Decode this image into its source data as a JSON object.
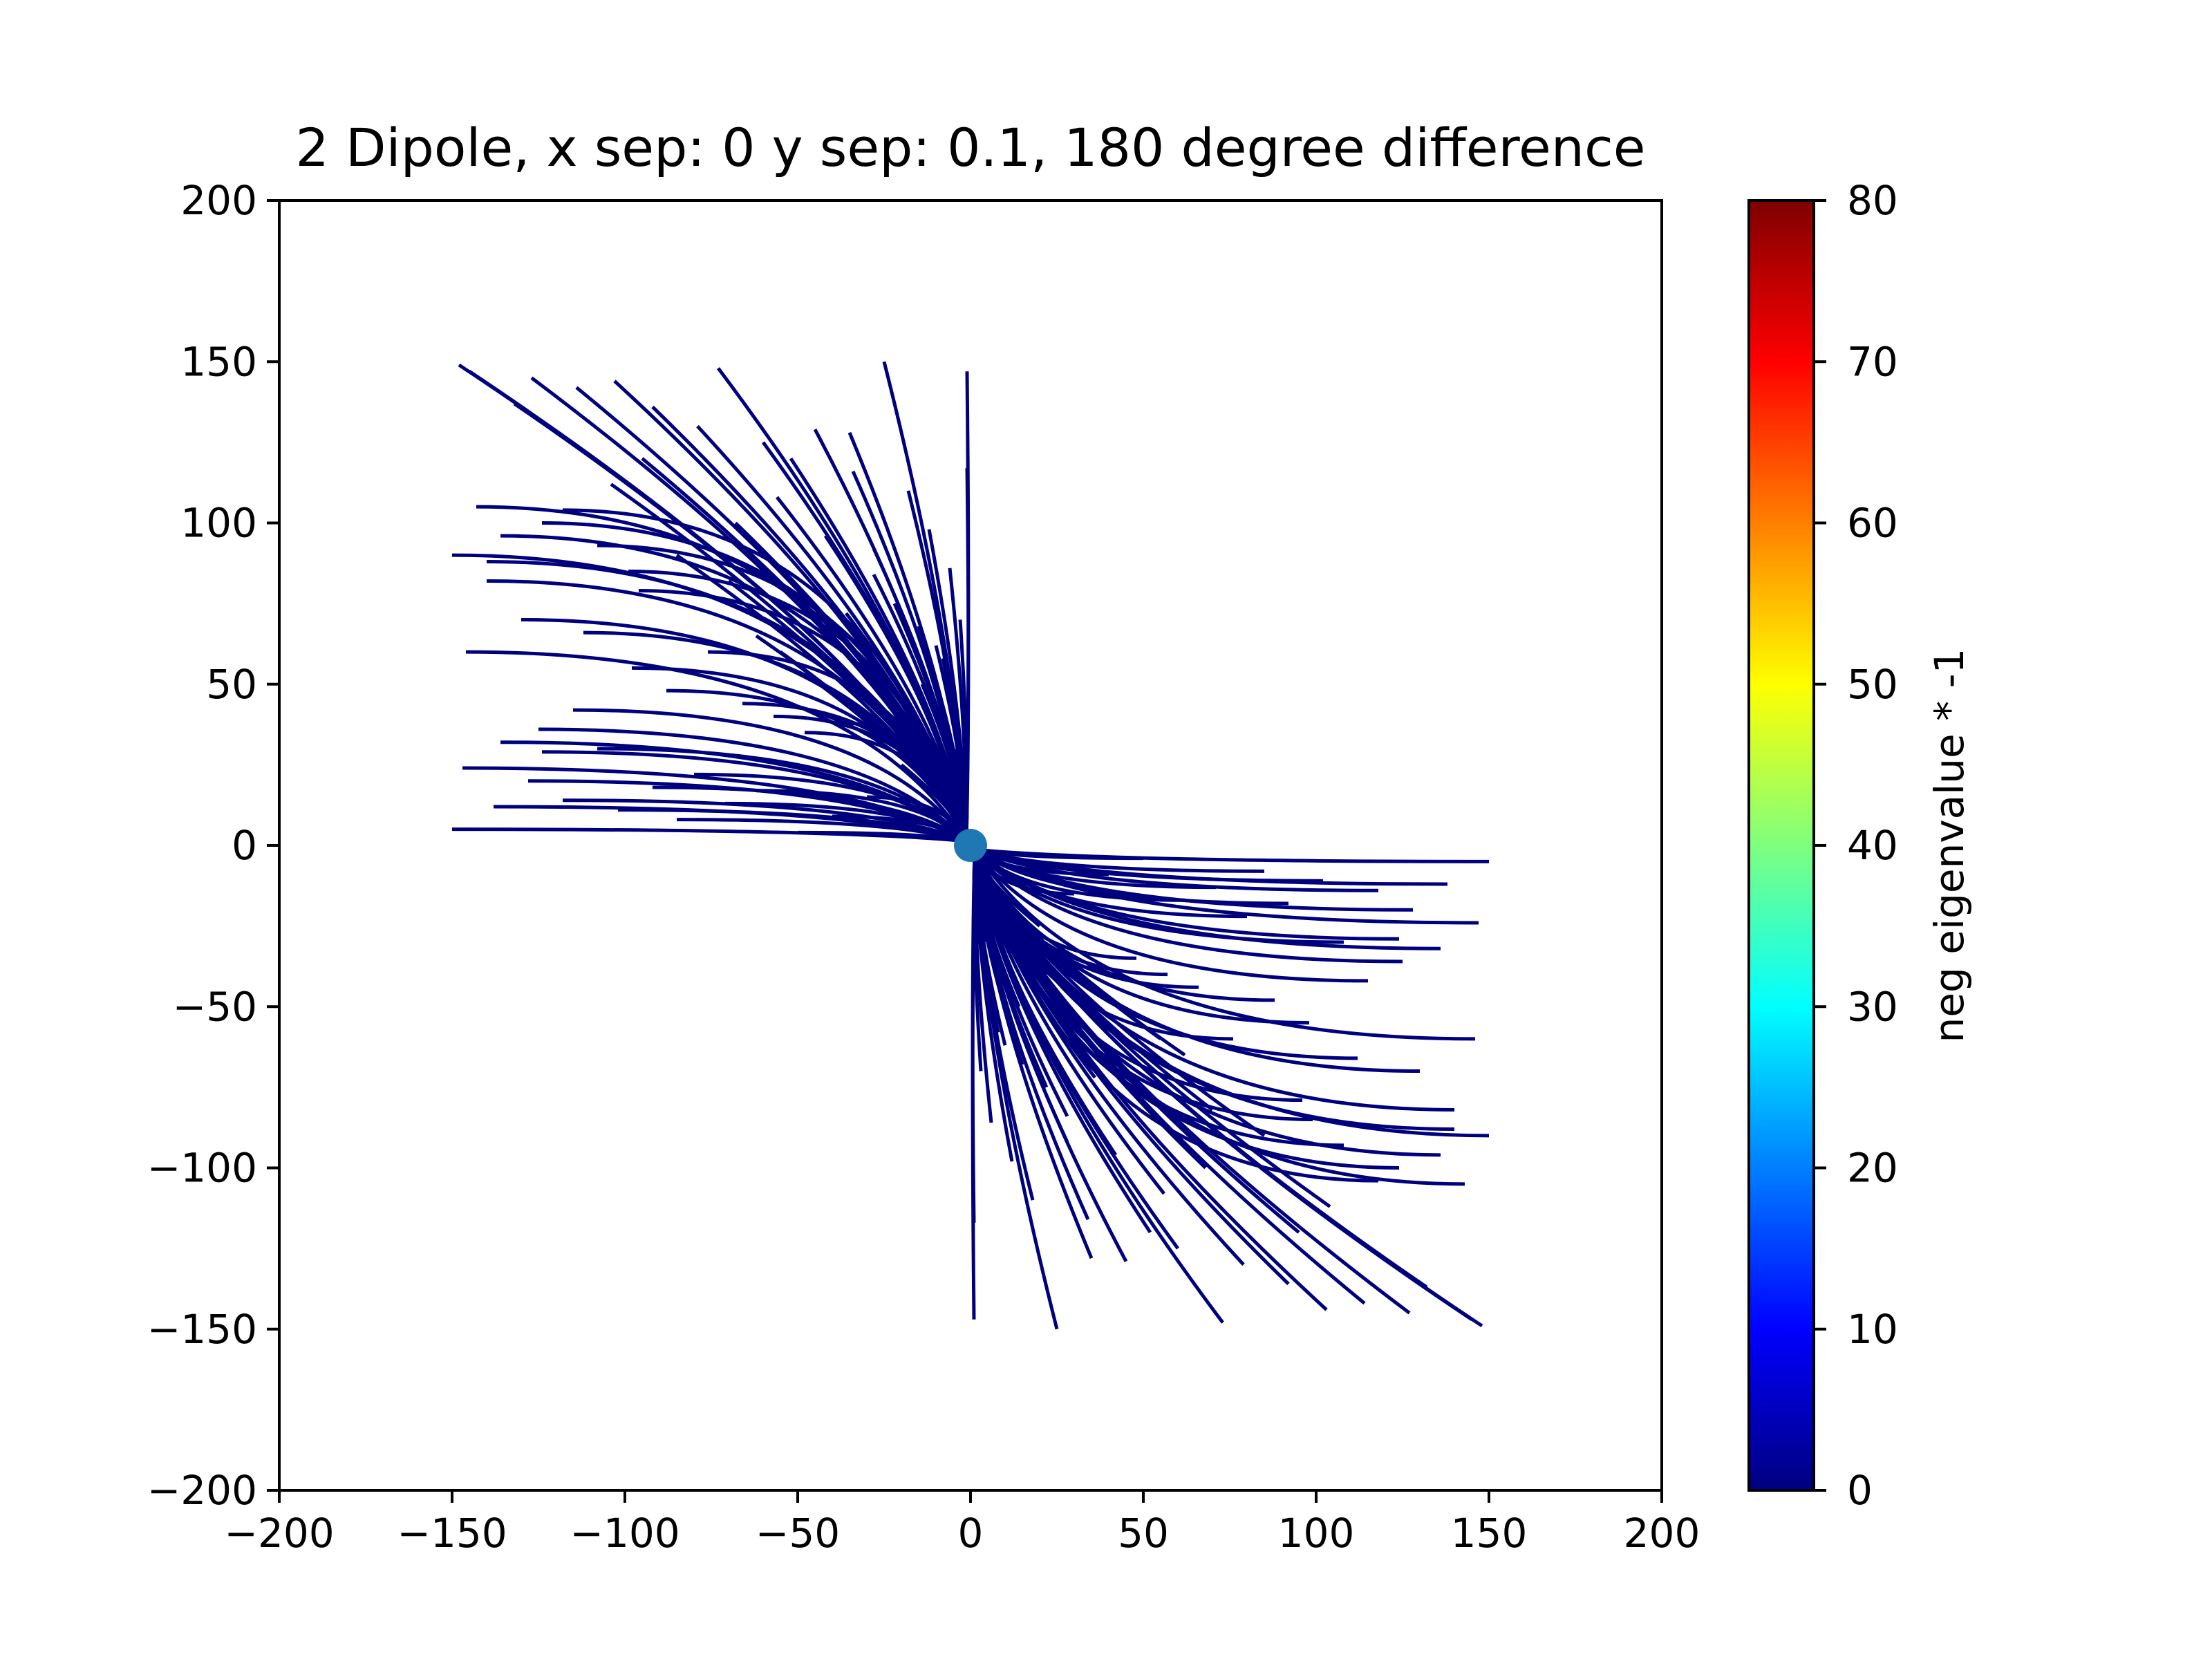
{
  "chart_data": {
    "type": "line",
    "title": "2 Dipole, x sep: 0 y sep: 0.1, 180 degree difference",
    "xlabel": "",
    "ylabel": "",
    "xlim": [
      -200,
      200
    ],
    "ylim": [
      -200,
      200
    ],
    "xticks": [
      "−200",
      "−150",
      "−100",
      "−50",
      "0",
      "50",
      "100",
      "150",
      "200"
    ],
    "yticks": [
      "−200",
      "−150",
      "−100",
      "−50",
      "0",
      "50",
      "100",
      "150",
      "200"
    ],
    "grid": false,
    "line_color": "#00007f",
    "line_count": 150,
    "dipole_marker": {
      "x": 0,
      "y": 0,
      "color": "#1f77b4"
    },
    "line_endpoints": {
      "upper_left": [
        [
          -148,
          149
        ],
        [
          -145,
          147
        ],
        [
          -132,
          137
        ],
        [
          -127,
          145
        ],
        [
          -114,
          142
        ],
        [
          -103,
          144
        ],
        [
          -92,
          136
        ],
        [
          -79,
          130
        ],
        [
          -73,
          148
        ],
        [
          -60,
          125
        ],
        [
          -52,
          120
        ],
        [
          -45,
          129
        ],
        [
          -34,
          116
        ],
        [
          -25,
          150
        ],
        [
          -1,
          147
        ],
        [
          -1,
          117
        ],
        [
          -150,
          90
        ],
        [
          -143,
          105
        ],
        [
          -140,
          88
        ],
        [
          -140,
          82
        ],
        [
          -136,
          96
        ],
        [
          -124,
          100
        ],
        [
          -118,
          104
        ],
        [
          -108,
          93
        ],
        [
          -99,
          85
        ],
        [
          -96,
          79
        ],
        [
          -85,
          90
        ],
        [
          -70,
          82
        ],
        [
          -62,
          65
        ],
        [
          -55,
          60
        ],
        [
          -45,
          51
        ],
        [
          -36,
          72
        ],
        [
          -28,
          84
        ],
        [
          -22,
          75
        ],
        [
          -15,
          68
        ],
        [
          -10,
          62
        ],
        [
          -147,
          24
        ],
        [
          -136,
          32
        ],
        [
          -128,
          20
        ],
        [
          -124,
          29
        ],
        [
          -118,
          14
        ],
        [
          -108,
          30
        ],
        [
          -102,
          11
        ],
        [
          -92,
          18
        ],
        [
          -85,
          8
        ],
        [
          -80,
          22
        ],
        [
          -71,
          13
        ],
        [
          -62,
          17
        ],
        [
          -50,
          4
        ],
        [
          -40,
          9
        ],
        [
          -30,
          15
        ],
        [
          -20,
          25
        ],
        [
          -150,
          5
        ],
        [
          -138,
          12
        ],
        [
          -125,
          36
        ],
        [
          -115,
          42
        ],
        [
          -98,
          55
        ],
        [
          -88,
          48
        ],
        [
          -76,
          60
        ],
        [
          -66,
          44
        ],
        [
          -57,
          40
        ],
        [
          -48,
          35
        ],
        [
          -38,
          38
        ],
        [
          -30,
          46
        ],
        [
          -22,
          40
        ],
        [
          -14,
          50
        ],
        [
          -8,
          58
        ],
        [
          -4,
          30
        ],
        [
          -146,
          60
        ],
        [
          -130,
          70
        ],
        [
          -112,
          66
        ],
        [
          -104,
          112
        ],
        [
          -95,
          120
        ],
        [
          -84,
          110
        ],
        [
          -68,
          100
        ],
        [
          -56,
          108
        ],
        [
          -42,
          96
        ],
        [
          -35,
          128
        ],
        [
          -28,
          92
        ],
        [
          -18,
          110
        ],
        [
          -12,
          98
        ],
        [
          -6,
          86
        ],
        [
          -3,
          70
        ]
      ],
      "lower_right": [
        [
          148,
          -149
        ],
        [
          145,
          -147
        ],
        [
          132,
          -137
        ],
        [
          127,
          -145
        ],
        [
          114,
          -142
        ],
        [
          103,
          -144
        ],
        [
          92,
          -136
        ],
        [
          79,
          -130
        ],
        [
          73,
          -148
        ],
        [
          60,
          -125
        ],
        [
          52,
          -120
        ],
        [
          45,
          -129
        ],
        [
          34,
          -116
        ],
        [
          25,
          -150
        ],
        [
          1,
          -147
        ],
        [
          1,
          -117
        ],
        [
          150,
          -90
        ],
        [
          143,
          -105
        ],
        [
          140,
          -88
        ],
        [
          140,
          -82
        ],
        [
          136,
          -96
        ],
        [
          124,
          -100
        ],
        [
          118,
          -104
        ],
        [
          108,
          -93
        ],
        [
          99,
          -85
        ],
        [
          96,
          -79
        ],
        [
          85,
          -90
        ],
        [
          70,
          -82
        ],
        [
          62,
          -65
        ],
        [
          55,
          -60
        ],
        [
          45,
          -51
        ],
        [
          36,
          -72
        ],
        [
          28,
          -84
        ],
        [
          22,
          -75
        ],
        [
          15,
          -68
        ],
        [
          10,
          -62
        ],
        [
          147,
          -24
        ],
        [
          136,
          -32
        ],
        [
          128,
          -20
        ],
        [
          124,
          -29
        ],
        [
          118,
          -14
        ],
        [
          108,
          -30
        ],
        [
          102,
          -11
        ],
        [
          92,
          -18
        ],
        [
          85,
          -8
        ],
        [
          80,
          -22
        ],
        [
          71,
          -13
        ],
        [
          62,
          -17
        ],
        [
          50,
          -4
        ],
        [
          40,
          -9
        ],
        [
          30,
          -15
        ],
        [
          20,
          -25
        ],
        [
          150,
          -5
        ],
        [
          138,
          -12
        ],
        [
          125,
          -36
        ],
        [
          115,
          -42
        ],
        [
          98,
          -55
        ],
        [
          88,
          -48
        ],
        [
          76,
          -60
        ],
        [
          66,
          -44
        ],
        [
          57,
          -40
        ],
        [
          48,
          -35
        ],
        [
          38,
          -38
        ],
        [
          30,
          -46
        ],
        [
          22,
          -40
        ],
        [
          14,
          -50
        ],
        [
          8,
          -58
        ],
        [
          4,
          -30
        ],
        [
          146,
          -60
        ],
        [
          130,
          -70
        ],
        [
          112,
          -66
        ],
        [
          104,
          -112
        ],
        [
          95,
          -120
        ],
        [
          84,
          -110
        ],
        [
          68,
          -100
        ],
        [
          56,
          -108
        ],
        [
          42,
          -96
        ],
        [
          35,
          -128
        ],
        [
          28,
          -92
        ],
        [
          18,
          -110
        ],
        [
          12,
          -98
        ],
        [
          6,
          -86
        ],
        [
          3,
          -70
        ]
      ]
    },
    "colorbar": {
      "label": "neg eigenvalue * -1",
      "range": [
        0,
        80
      ],
      "ticks": [
        "0",
        "10",
        "20",
        "30",
        "40",
        "50",
        "60",
        "70",
        "80"
      ],
      "colormap": "jet",
      "stops": [
        "#00007f",
        "#0000ff",
        "#007fff",
        "#00ffff",
        "#7fff7f",
        "#ffff00",
        "#ff7f00",
        "#ff0000",
        "#7f0000"
      ]
    }
  }
}
